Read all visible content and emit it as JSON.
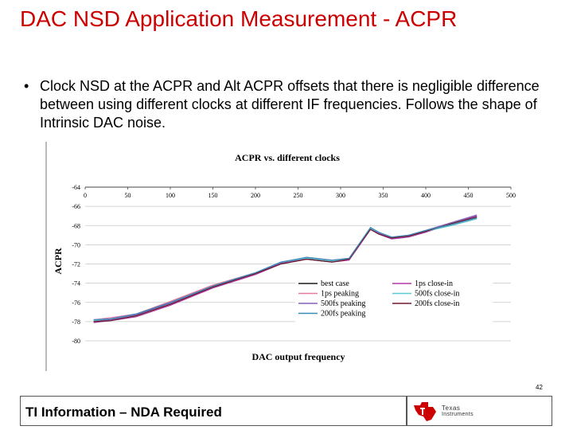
{
  "page": {
    "title": "DAC NSD Application Measurement - ACPR",
    "bullet": "Clock NSD at the ACPR and Alt ACPR offsets that there is negligible difference between using different clocks at different IF frequencies. Follows the shape of Intrinsic DAC noise.",
    "page_number": "42",
    "footer_text": "TI Information – NDA Required",
    "logo_line1": "Texas",
    "logo_line2": "Instruments",
    "accent_color": "#cc0000"
  },
  "chart_data": {
    "type": "line",
    "title": "ACPR vs. different clocks",
    "xlabel": "DAC output frequency",
    "ylabel": "ACPR",
    "xlim": [
      0,
      500
    ],
    "ylim": [
      -80,
      -64
    ],
    "x_ticks": [
      0,
      50,
      100,
      150,
      200,
      250,
      300,
      350,
      400,
      450,
      500
    ],
    "y_ticks": [
      -64,
      -66,
      -68,
      -70,
      -72,
      -74,
      -76,
      -78,
      -80
    ],
    "x": [
      10,
      30,
      60,
      100,
      150,
      200,
      230,
      260,
      290,
      310,
      325,
      335,
      345,
      360,
      380,
      400,
      430,
      460
    ],
    "series": [
      {
        "name": "best case",
        "color": "#1a1a1a",
        "values": [
          -77.9,
          -77.8,
          -77.3,
          -76.0,
          -74.3,
          -73.0,
          -71.9,
          -71.4,
          -71.7,
          -71.4,
          -69.5,
          -68.3,
          -68.8,
          -69.3,
          -69.1,
          -68.6,
          -67.9,
          -67.2
        ]
      },
      {
        "name": "1ps close-in",
        "color": "#b03aa8",
        "values": [
          -78.1,
          -77.9,
          -77.5,
          -76.3,
          -74.5,
          -73.1,
          -72.0,
          -71.5,
          -71.8,
          -71.6,
          -69.7,
          -68.4,
          -68.9,
          -69.4,
          -69.2,
          -68.7,
          -67.8,
          -67.0
        ]
      },
      {
        "name": "1ps peaking",
        "color": "#e87aa0",
        "values": [
          -77.8,
          -77.6,
          -77.2,
          -75.9,
          -74.2,
          -72.9,
          -71.9,
          -71.3,
          -71.6,
          -71.4,
          -69.6,
          -68.3,
          -68.8,
          -69.2,
          -69.0,
          -68.5,
          -67.9,
          -67.3
        ]
      },
      {
        "name": "500fs close-in",
        "color": "#5ec8d0",
        "values": [
          -77.9,
          -77.7,
          -77.4,
          -76.1,
          -74.3,
          -72.9,
          -71.8,
          -71.4,
          -71.7,
          -71.5,
          -69.6,
          -68.3,
          -68.8,
          -69.3,
          -69.1,
          -68.6,
          -68.0,
          -67.3
        ]
      },
      {
        "name": "500fs peaking",
        "color": "#8060b8",
        "values": [
          -78.0,
          -77.8,
          -77.3,
          -76.1,
          -74.4,
          -73.0,
          -71.9,
          -71.5,
          -71.8,
          -71.5,
          -69.6,
          -68.4,
          -68.8,
          -69.3,
          -69.0,
          -68.5,
          -67.7,
          -66.9
        ]
      },
      {
        "name": "200fs close-in",
        "color": "#6b1a2a",
        "values": [
          -78.0,
          -77.9,
          -77.4,
          -76.2,
          -74.4,
          -73.0,
          -72.0,
          -71.5,
          -71.8,
          -71.5,
          -69.6,
          -68.4,
          -68.9,
          -69.3,
          -69.1,
          -68.6,
          -67.8,
          -67.1
        ]
      },
      {
        "name": "200fs peaking",
        "color": "#3a8ab8",
        "values": [
          -77.8,
          -77.7,
          -77.2,
          -76.0,
          -74.3,
          -72.9,
          -71.8,
          -71.3,
          -71.6,
          -71.4,
          -69.5,
          -68.2,
          -68.7,
          -69.2,
          -69.0,
          -68.5,
          -67.9,
          -67.2
        ]
      }
    ],
    "legend": "bottom-right"
  }
}
